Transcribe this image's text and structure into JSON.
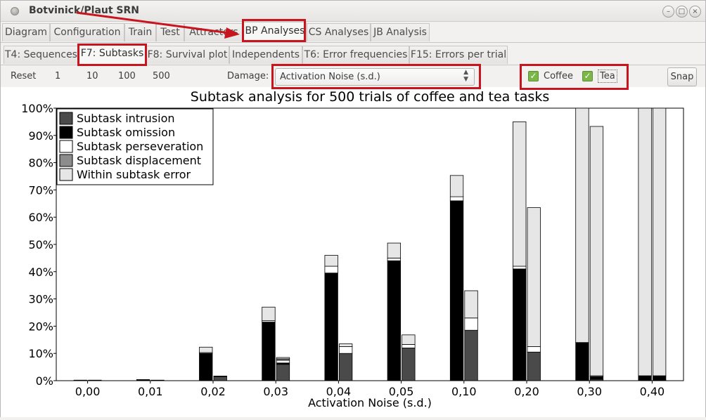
{
  "window": {
    "title": "Botvinick/Plaut SRN"
  },
  "tabs_main": [
    {
      "label": "Diagram"
    },
    {
      "label": "Configuration"
    },
    {
      "label": "Train"
    },
    {
      "label": "Test"
    },
    {
      "label": "Attractors"
    },
    {
      "label": "BP Analyses"
    },
    {
      "label": "CS Analyses"
    },
    {
      "label": "JB Analysis"
    }
  ],
  "tabs_sub": [
    {
      "label": "T4: Sequences"
    },
    {
      "label": "F7: Subtasks"
    },
    {
      "label": "F8: Survival plot"
    },
    {
      "label": "Independents"
    },
    {
      "label": "T6: Error frequencies"
    },
    {
      "label": "F15: Errors per trial"
    }
  ],
  "toolbar": {
    "reset": "Reset",
    "n1": "1",
    "n10": "10",
    "n100": "100",
    "n500": "500",
    "damage_label": "Damage:",
    "damage_value": "Activation Noise (s.d.)",
    "coffee": "Coffee",
    "tea": "Tea",
    "snap": "Snap"
  },
  "colors": {
    "annotation": "#c8141e",
    "intrusion": "#4a4a4a",
    "omission": "#000000",
    "perseveration": "#ffffff",
    "displacement": "#8c8c8c",
    "within": "#e6e6e6",
    "check": "#7ab648"
  },
  "chart_data": {
    "type": "bar",
    "stacked": true,
    "title": "Subtask analysis for 500 trials of coffee and tea tasks",
    "xlabel": "Activation Noise (s.d.)",
    "ylabel": "",
    "ylim": [
      0,
      100
    ],
    "yticks": [
      "0%",
      "10%",
      "20%",
      "30%",
      "40%",
      "50%",
      "60%",
      "70%",
      "80%",
      "90%",
      "100%"
    ],
    "categories": [
      "0,00",
      "0,01",
      "0,02",
      "0,03",
      "0,04",
      "0,05",
      "0,10",
      "0,20",
      "0,30",
      "0,40"
    ],
    "groups": [
      "Coffee",
      "Tea"
    ],
    "legend": [
      "Subtask intrusion",
      "Subtask omission",
      "Subtask perseveration",
      "Subtask displacement",
      "Within subtask error"
    ],
    "legend_position": "top-left",
    "coffee": {
      "intrusion": [
        0,
        0,
        0,
        0,
        0,
        0,
        0,
        0,
        0,
        0
      ],
      "omission": [
        0.2,
        0.4,
        10,
        21.5,
        39.5,
        44,
        66,
        41,
        14,
        1.8
      ],
      "perseveration": [
        0,
        0,
        0.3,
        0.5,
        2.5,
        1,
        1.5,
        1,
        0,
        0
      ],
      "displacement": [
        0,
        0,
        0,
        0,
        0,
        0,
        0,
        0,
        0,
        0
      ],
      "within": [
        0,
        0,
        2,
        5,
        4,
        5.5,
        7.8,
        53,
        86,
        98.2
      ]
    },
    "tea": {
      "intrusion": [
        0,
        0,
        1.5,
        6,
        10,
        12,
        18.5,
        10.5,
        0.5,
        0.2
      ],
      "omission": [
        0.2,
        0.2,
        0,
        0.5,
        0,
        0,
        0,
        0,
        1,
        1.6
      ],
      "perseveration": [
        0,
        0,
        0.2,
        1,
        2.5,
        1.3,
        4.5,
        2,
        0.3,
        0
      ],
      "displacement": [
        0,
        0,
        0,
        0.5,
        0,
        0,
        0,
        0,
        0,
        0
      ],
      "within": [
        0,
        0,
        0,
        0.5,
        1,
        3.5,
        10,
        51,
        91.5,
        98.2
      ]
    }
  }
}
